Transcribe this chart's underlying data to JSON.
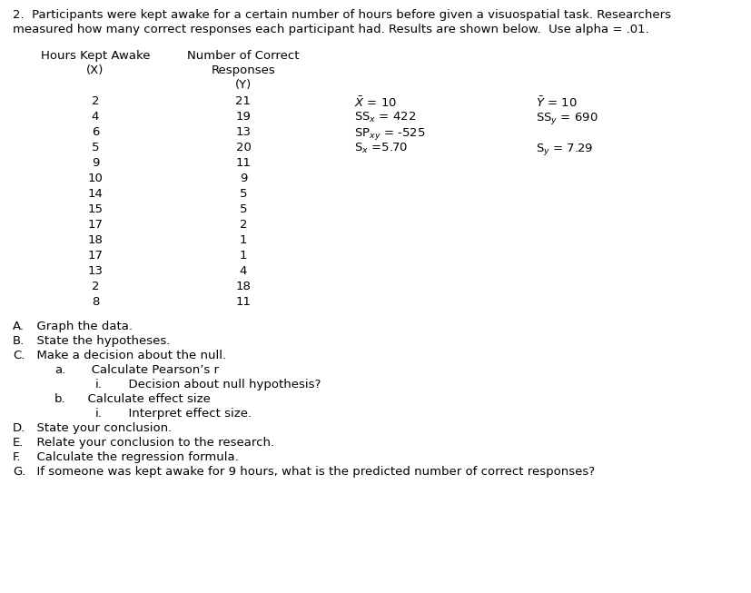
{
  "title_line1": "2.  Participants were kept awake for a certain number of hours before given a visuospatial task. Researchers",
  "title_line2": "measured how many correct responses each participant had. Results are shown below.  Use alpha = .01.",
  "col1_header": [
    "Hours Kept Awake",
    "(X)"
  ],
  "col2_header": [
    "Number of Correct",
    "Responses",
    "(Y)"
  ],
  "x_values": [
    2,
    4,
    6,
    5,
    9,
    10,
    14,
    15,
    17,
    18,
    17,
    13,
    2,
    8
  ],
  "y_values": [
    21,
    19,
    13,
    20,
    11,
    9,
    5,
    5,
    2,
    1,
    1,
    4,
    18,
    11
  ],
  "stats_left": [
    "$\\bar{X}$ = 10",
    "SS$_x$ = 422",
    "SP$_{xy}$ = -525",
    "S$_x$ =5.70"
  ],
  "stats_right": [
    "$\\bar{Y}$ = 10",
    "SS$_y$ = 690",
    "",
    "S$_y$ = 7.29"
  ],
  "questions": [
    [
      "A.",
      "  Graph the data.",
      0
    ],
    [
      "B.",
      "  State the hypotheses.",
      0
    ],
    [
      "C.",
      "  Make a decision about the null.",
      0
    ],
    [
      "a.",
      "   Calculate Pearson’s r",
      1
    ],
    [
      "i.",
      "  Decision about null hypothesis?",
      2
    ],
    [
      "b.",
      "  Calculate effect size",
      1
    ],
    [
      "i.",
      "  Interpret effect size.",
      2
    ],
    [
      "D.",
      "  State your conclusion.",
      0
    ],
    [
      "E.",
      "  Relate your conclusion to the research.",
      0
    ],
    [
      "F.",
      "  Calculate the regression formula.",
      0
    ],
    [
      "G.",
      "  If someone was kept awake for 9 hours, what is the predicted number of correct responses?",
      0
    ]
  ],
  "background_color": "#ffffff",
  "text_color": "#000000",
  "font_size": 9.5,
  "font_size_title": 9.5
}
